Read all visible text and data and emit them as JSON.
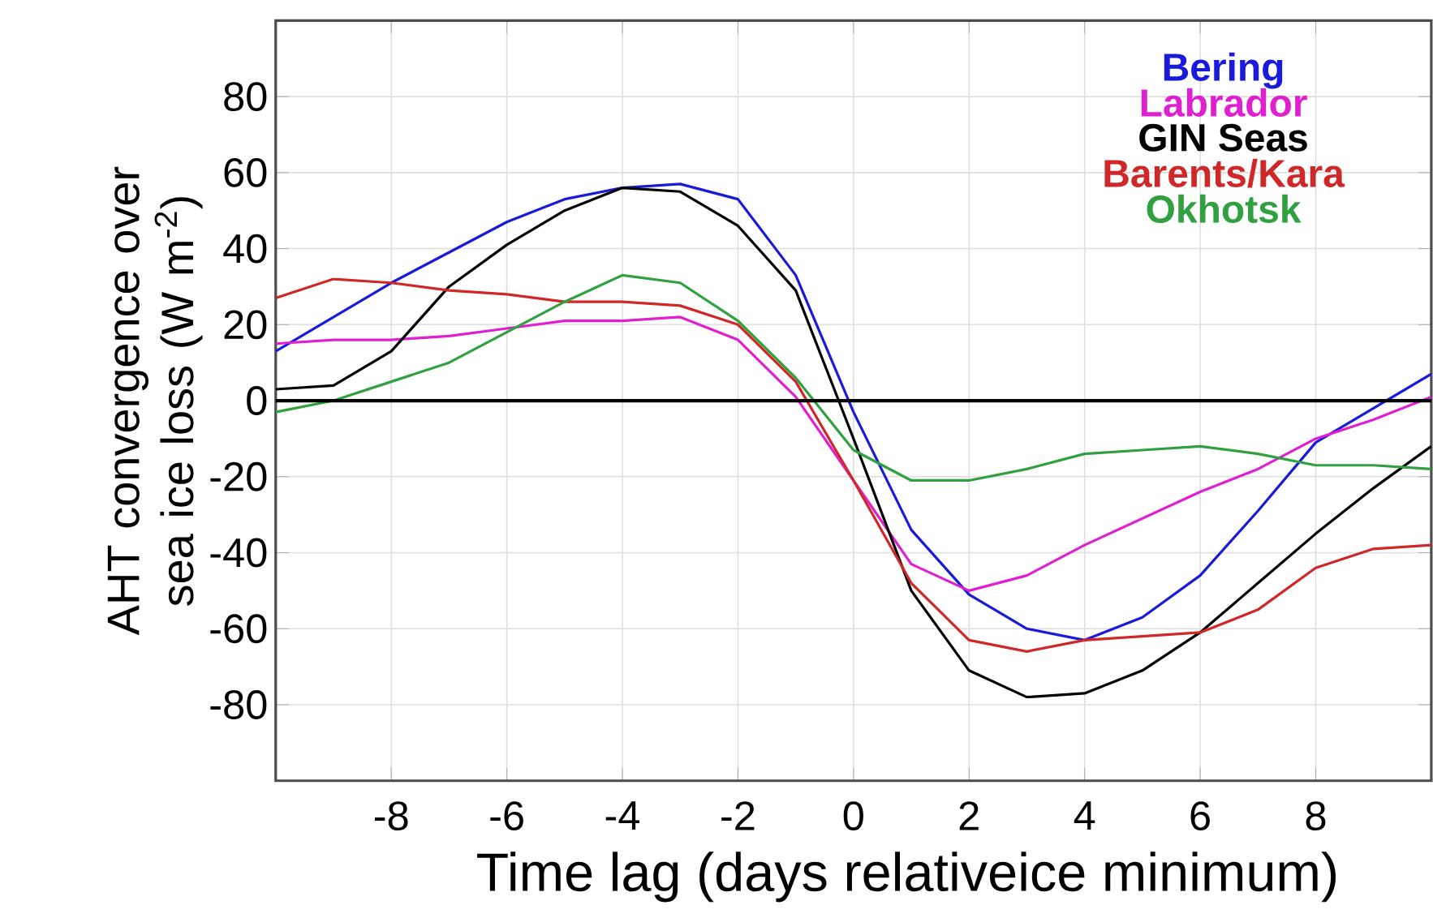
{
  "chart_data": {
    "type": "line",
    "xlabel": "Time lag (days relativeice minimum)",
    "ylabel": "AHT convergence over sea ice loss (W m$^{-2}$)",
    "x": [
      -10,
      -9,
      -8,
      -7,
      -6,
      -5,
      -4,
      -3,
      -2,
      -1,
      0,
      1,
      2,
      3,
      4,
      5,
      6,
      7,
      8,
      9,
      10
    ],
    "xlim": [
      -10,
      10
    ],
    "xticks": [
      -8,
      -6,
      -4,
      -2,
      0,
      2,
      4,
      6,
      8
    ],
    "ylim": [
      -100,
      100
    ],
    "yticks": [
      -80,
      -60,
      -40,
      -20,
      0,
      20,
      40,
      60,
      80
    ],
    "grid": true,
    "legend": "top right",
    "marker": "none",
    "line_style": "solid",
    "ref_lines": [
      {
        "axis": "y",
        "value": 0,
        "color": "#000000"
      }
    ],
    "series": [
      {
        "name": "Bering",
        "color": "#1a1adb",
        "values": [
          13,
          22,
          31,
          39,
          47,
          53,
          56,
          57,
          53,
          33,
          -3,
          -34,
          -51,
          -60,
          -63,
          -57,
          -46,
          -29,
          -11,
          -2,
          7
        ]
      },
      {
        "name": "Labrador",
        "color": "#e020d0",
        "values": [
          15,
          16,
          16,
          17,
          19,
          21,
          21,
          22,
          16,
          1,
          -21,
          -43,
          -50,
          -46,
          -38,
          -31,
          -24,
          -18,
          -10,
          -5,
          1
        ]
      },
      {
        "name": "GIN Seas",
        "color": "#000000",
        "values": [
          3,
          4,
          13,
          30,
          41,
          50,
          56,
          55,
          46,
          29,
          -10,
          -50,
          -71,
          -78,
          -77,
          -71,
          -61,
          -48,
          -35,
          -23,
          -12
        ]
      },
      {
        "name": "Barents/Kara",
        "color": "#d02828",
        "values": [
          27,
          32,
          31,
          29,
          28,
          26,
          26,
          25,
          20,
          5,
          -21,
          -48,
          -63,
          -66,
          -63,
          -62,
          -61,
          -55,
          -44,
          -39,
          -38
        ]
      },
      {
        "name": "Okhotsk",
        "color": "#30a040",
        "values": [
          -3,
          0,
          5,
          10,
          18,
          26,
          33,
          31,
          21,
          6,
          -13,
          -21,
          -21,
          -18,
          -14,
          -13,
          -12,
          -14,
          -17,
          -17,
          -18
        ]
      }
    ]
  }
}
